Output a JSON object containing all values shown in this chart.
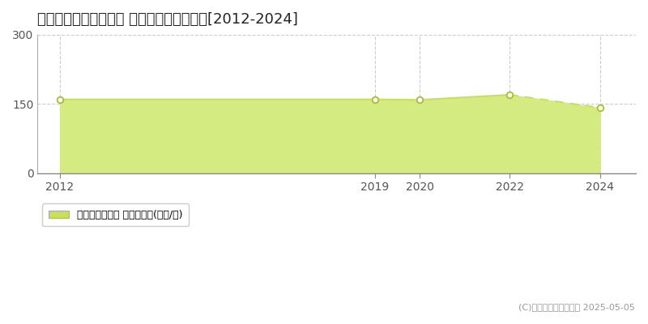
{
  "title": "名古屋市昭和区車田町 マンション価格推移[2012-2024]",
  "years": [
    2012,
    2019,
    2020,
    2022,
    2024
  ],
  "values": [
    160,
    160,
    159,
    170,
    142
  ],
  "xlim": [
    2011.5,
    2024.8
  ],
  "ylim": [
    0,
    300
  ],
  "yticks": [
    0,
    150,
    300
  ],
  "xticks": [
    2012,
    2019,
    2020,
    2022,
    2024
  ],
  "line_color": "#c8e054",
  "fill_color": "#d4eb82",
  "fill_alpha": 1.0,
  "point_color": "#ffffff",
  "point_edge_color": "#a8bc30",
  "grid_color": "#cccccc",
  "background_color": "#ffffff",
  "legend_label": "マンション価格 平均坪単価(万円/坪)",
  "legend_marker_color": "#c8e054",
  "copyright_text": "(C)土地価格ドットコム 2025-05-05",
  "title_fontsize": 13,
  "axis_fontsize": 10,
  "legend_fontsize": 9,
  "copyright_fontsize": 8
}
